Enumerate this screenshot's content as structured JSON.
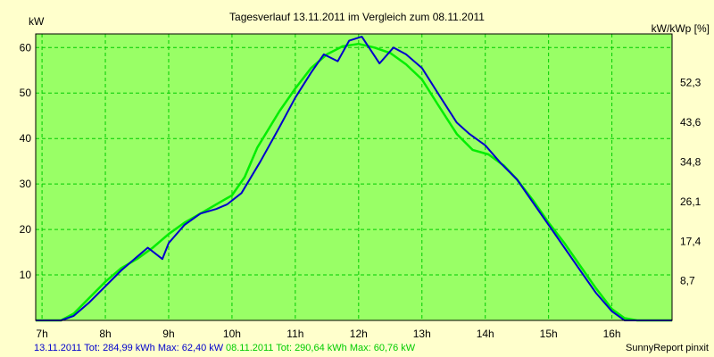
{
  "colors": {
    "background": "#ffffcc",
    "plot_area": "#99ff66",
    "grid": "#00cc00",
    "series_1": "#0000cc",
    "series_2": "#00ee00"
  },
  "chart_data": {
    "type": "line",
    "title": "Tagesverlauf 13.11.2011 im Vergleich zum 08.11.2011",
    "ylabel_left": "kW",
    "ylabel_right": "kW/kWp [%]",
    "xlim": [
      6.9,
      16.95
    ],
    "ylim": [
      0,
      63
    ],
    "grid": true,
    "x_ticks": [
      7,
      8,
      9,
      10,
      11,
      12,
      13,
      14,
      15,
      16
    ],
    "x_tick_labels": [
      "7h",
      "8h",
      "9h",
      "10h",
      "11h",
      "12h",
      "13h",
      "14h",
      "15h",
      "16h"
    ],
    "y_ticks_left": [
      10,
      20,
      30,
      40,
      50,
      60
    ],
    "y_tick_labels_left": [
      "10",
      "20",
      "30",
      "40",
      "50",
      "60"
    ],
    "y_ticks_right_kw": [
      8.7,
      17.4,
      26.1,
      34.8,
      43.6,
      52.3
    ],
    "y_tick_labels_right": [
      "8,7",
      "17,4",
      "26,1",
      "34,8",
      "43,6",
      "52,3"
    ],
    "series": [
      {
        "name": "13.11.2011",
        "color": "#0000cc",
        "x": [
          6.9,
          7.3,
          7.5,
          7.75,
          8.0,
          8.25,
          8.5,
          8.67,
          8.9,
          9.0,
          9.25,
          9.5,
          9.75,
          9.92,
          10.15,
          10.45,
          10.75,
          11.0,
          11.25,
          11.45,
          11.67,
          11.85,
          12.05,
          12.33,
          12.55,
          12.75,
          13.0,
          13.25,
          13.55,
          13.75,
          14.0,
          14.25,
          14.5,
          14.75,
          15.0,
          15.25,
          15.5,
          15.75,
          16.0,
          16.2,
          16.4,
          16.6,
          16.95
        ],
        "y": [
          0,
          0,
          1,
          4,
          7.5,
          11,
          14,
          16,
          13.5,
          17,
          21,
          23.5,
          24.5,
          25.5,
          28,
          35,
          42.5,
          49,
          54.5,
          58.5,
          57,
          61.5,
          62.4,
          56.5,
          60,
          58.5,
          55.5,
          50,
          43.5,
          41,
          38.5,
          34.5,
          31,
          26,
          21,
          16,
          11,
          6,
          2,
          0,
          0,
          0,
          0
        ]
      },
      {
        "name": "08.11.2011",
        "color": "#00ee00",
        "x": [
          6.9,
          7.3,
          7.5,
          7.75,
          8.0,
          8.25,
          8.5,
          8.75,
          9.0,
          9.25,
          9.5,
          9.75,
          10.0,
          10.2,
          10.4,
          10.75,
          11.0,
          11.25,
          11.5,
          11.75,
          12.0,
          12.25,
          12.5,
          12.75,
          13.0,
          13.25,
          13.55,
          13.8,
          14.05,
          14.3,
          14.5,
          14.75,
          15.0,
          15.25,
          15.5,
          15.75,
          16.0,
          16.2,
          16.4,
          16.6,
          16.95
        ],
        "y": [
          0,
          0,
          1.5,
          5,
          8.5,
          11.5,
          13.5,
          16,
          19,
          21.5,
          23.5,
          25.5,
          27.5,
          31.5,
          38,
          46,
          51,
          55.5,
          58.5,
          60.3,
          60.8,
          60,
          58.8,
          56.3,
          53,
          47.5,
          41,
          37.5,
          36.5,
          34,
          31,
          26.5,
          21.5,
          17,
          12,
          7,
          2.5,
          0.5,
          0,
          0,
          0
        ]
      }
    ],
    "footer_left": "13.11.2011 Tot: 284,99 kWh Max: 62,40 kW",
    "footer_middle": "08.11.2011 Tot: 290,64 kWh Max: 60,76 kW",
    "footer_right": "SunnyReport pinxit"
  }
}
